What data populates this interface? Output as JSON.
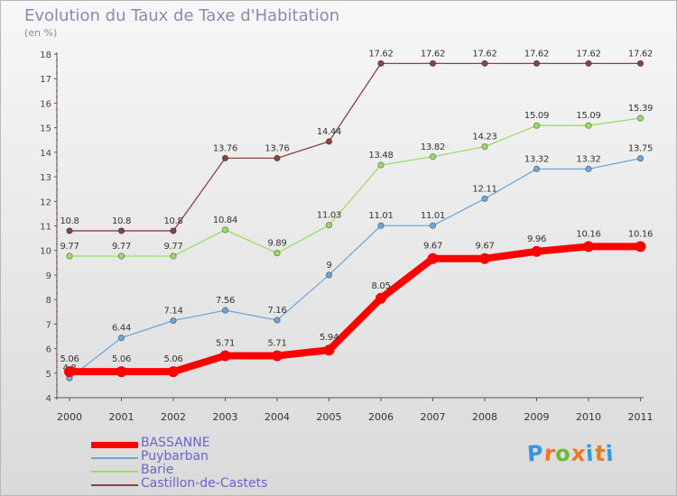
{
  "header": {
    "title": "Evolution du Taux de Taxe d'Habitation",
    "unit": "(en %)"
  },
  "brand": {
    "letters": [
      "P",
      "r",
      "o",
      "x",
      "i",
      "t",
      "i"
    ],
    "colors": [
      "#3399dd",
      "#ee7722",
      "#66bb33",
      "#ee7722",
      "#3399dd",
      "#ee7722",
      "#3399dd"
    ]
  },
  "chart_data": {
    "type": "line",
    "title": "Evolution du Taux de Taxe d'Habitation",
    "ylabel": "(en %)",
    "ylim": [
      4,
      18
    ],
    "yticks": [
      4,
      5,
      6,
      7,
      8,
      9,
      10,
      11,
      12,
      13,
      14,
      15,
      16,
      17,
      18
    ],
    "grid": false,
    "legend": "bottom-left",
    "x": [
      "2000",
      "2001",
      "2002",
      "2003",
      "2004",
      "2005",
      "2006",
      "2007",
      "2008",
      "2009",
      "2010",
      "2011"
    ],
    "series": [
      {
        "name": "BASSANNE",
        "color": "#ff0000",
        "bold": true,
        "values": [
          5.06,
          5.06,
          5.06,
          5.71,
          5.71,
          5.94,
          8.05,
          9.67,
          9.67,
          9.96,
          10.16,
          10.16
        ],
        "labels": [
          "5.06",
          "5.06",
          "5.06",
          "5.71",
          "5.71",
          "5.94",
          "8.05",
          "9.67",
          "9.67",
          "9.96",
          "10.16",
          "10.16"
        ]
      },
      {
        "name": "Puybarban",
        "color": "#6fa8d8",
        "bold": false,
        "values": [
          4.8,
          6.44,
          7.14,
          7.56,
          7.16,
          9,
          11.01,
          11.01,
          12.11,
          13.32,
          13.32,
          13.75
        ],
        "labels": [
          "4.8",
          "6.44",
          "7.14",
          "7.56",
          "7.16",
          "9",
          "11.01",
          "11.01",
          "12.11",
          "13.32",
          "13.32",
          "13.75"
        ]
      },
      {
        "name": "Barie",
        "color": "#99dd66",
        "bold": false,
        "values": [
          9.77,
          9.77,
          9.77,
          10.84,
          9.89,
          11.03,
          13.48,
          13.82,
          14.23,
          15.09,
          15.09,
          15.39
        ],
        "labels": [
          "9.77",
          "9.77",
          "9.77",
          "10.84",
          "9.89",
          "11.03",
          "13.48",
          "13.82",
          "14.23",
          "15.09",
          "15.09",
          "15.39"
        ]
      },
      {
        "name": "Castillon-de-Castets",
        "color": "#884444",
        "bold": false,
        "values": [
          10.8,
          10.8,
          10.8,
          13.76,
          13.76,
          14.44,
          17.62,
          17.62,
          17.62,
          17.62,
          17.62,
          17.62
        ],
        "labels": [
          "10.8",
          "10.8",
          "10.8",
          "13.76",
          "13.76",
          "14.44",
          "17.62",
          "17.62",
          "17.62",
          "17.62",
          "17.62",
          "17.62"
        ]
      }
    ]
  }
}
